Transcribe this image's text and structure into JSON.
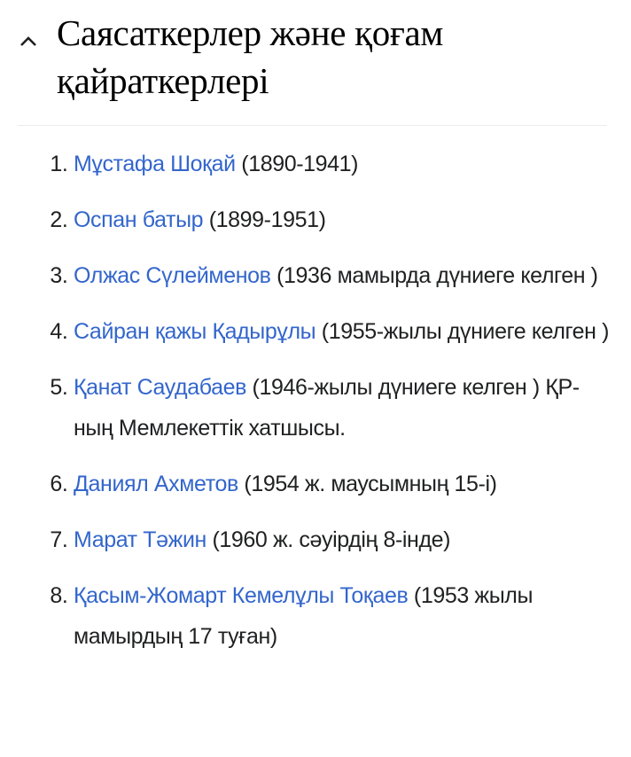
{
  "section": {
    "title": "Саясаткерлер және қоғам қайраткерлері",
    "toggle_icon": "chevron-up-icon",
    "link_color": "#3366cc"
  },
  "items": [
    {
      "link": "Мұстафа Шоқай",
      "text": " (1890-1941)"
    },
    {
      "link": "Оспан батыр",
      "text": " (1899-1951)"
    },
    {
      "link": "Олжас Сүлейменов",
      "text": " (1936 мамырда дүниеге келген )"
    },
    {
      "link": "Сайран қажы Қадырұлы",
      "text": " (1955-жылы дүниеге келген )"
    },
    {
      "link": "Қанат Саудабаев",
      "text": " (1946-жылы дүниеге келген ) ҚР-ның Мемлекеттік хатшысы."
    },
    {
      "link": "Даниял Ахметов",
      "text": " (1954 ж. маусымның 15-і)"
    },
    {
      "link": "Марат Тәжин",
      "text": " (1960 ж. сәуірдің 8-інде)"
    },
    {
      "link": "Қасым-Жомарт Кемелұлы Тоқаев",
      "text": " (1953 жылы мамырдың 17 туған)"
    }
  ]
}
